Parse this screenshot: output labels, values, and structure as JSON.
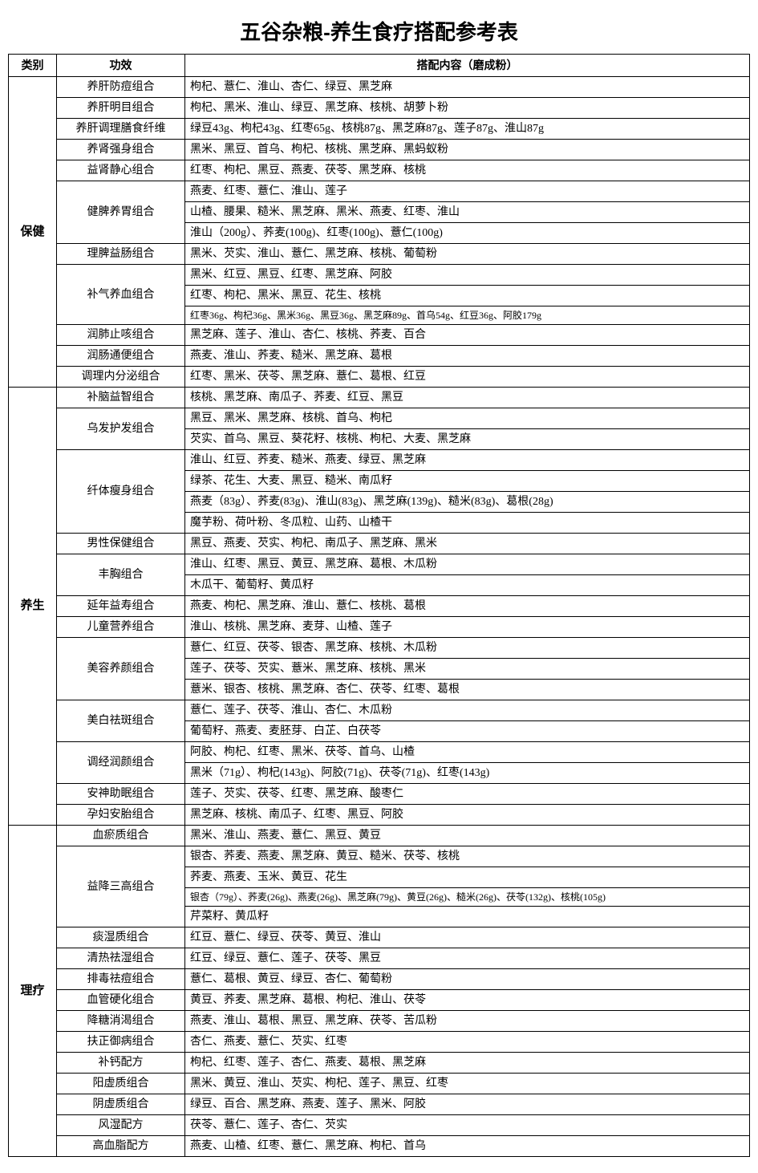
{
  "document": {
    "title": "五谷杂粮-养生食疗搭配参考表",
    "type": "table",
    "background_color": "#ffffff",
    "border_color": "#000000",
    "title_fontsize": 26,
    "header_fontsize": 14,
    "cell_fontsize": 14,
    "small_cell_fontsize": 12,
    "columns": {
      "category": "类别",
      "effect": "功效",
      "content": "搭配内容（磨成粉）"
    },
    "categories": [
      {
        "name": "保健",
        "sections": [
          {
            "effect": "养肝防痘组合",
            "rows": [
              "枸杞、薏仁、淮山、杏仁、绿豆、黑芝麻"
            ]
          },
          {
            "effect": "养肝明目组合",
            "rows": [
              "枸杞、黑米、淮山、绿豆、黑芝麻、核桃、胡萝卜粉"
            ]
          },
          {
            "effect": "养肝调理膳食纤维",
            "rows": [
              "绿豆43g、枸杞43g、红枣65g、核桃87g、黑芝麻87g、莲子87g、淮山87g"
            ]
          },
          {
            "effect": "养肾强身组合",
            "rows": [
              "黑米、黑豆、首乌、枸杞、核桃、黑芝麻、黑蚂蚁粉"
            ]
          },
          {
            "effect": "益肾静心组合",
            "rows": [
              "红枣、枸杞、黑豆、燕麦、茯苓、黑芝麻、核桃"
            ]
          },
          {
            "effect": "健脾养胃组合",
            "rows": [
              "燕麦、红枣、薏仁、淮山、莲子",
              "山楂、腰果、糙米、黑芝麻、黑米、燕麦、红枣、淮山",
              "淮山（200g）、荞麦(100g)、红枣(100g)、薏仁(100g)"
            ]
          },
          {
            "effect": "理脾益肠组合",
            "rows": [
              "黑米、芡实、淮山、薏仁、黑芝麻、核桃、葡萄粉"
            ]
          },
          {
            "effect": "补气养血组合",
            "rows": [
              "黑米、红豆、黑豆、红枣、黑芝麻、阿胶",
              "红枣、枸杞、黑米、黑豆、花生、核桃",
              "红枣36g、枸杞36g、黑米36g、黑豆36g、黑芝麻89g、首乌54g、红豆36g、阿胶179g"
            ],
            "small_rows": [
              2
            ]
          },
          {
            "effect": "润肺止咳组合",
            "rows": [
              "黑芝麻、莲子、淮山、杏仁、核桃、荞麦、百合"
            ]
          },
          {
            "effect": "润肠通便组合",
            "rows": [
              "燕麦、淮山、荞麦、糙米、黑芝麻、葛根"
            ]
          },
          {
            "effect": "调理内分泌组合",
            "rows": [
              "红枣、黑米、茯苓、黑芝麻、薏仁、葛根、红豆"
            ]
          }
        ]
      },
      {
        "name": "养生",
        "sections": [
          {
            "effect": "补脑益智组合",
            "rows": [
              "核桃、黑芝麻、南瓜子、荞麦、红豆、黑豆"
            ]
          },
          {
            "effect": "乌发护发组合",
            "rows": [
              "黑豆、黑米、黑芝麻、核桃、首乌、枸杞",
              "芡实、首乌、黑豆、葵花籽、核桃、枸杞、大麦、黑芝麻"
            ]
          },
          {
            "effect": "纤体瘦身组合",
            "rows": [
              "淮山、红豆、荞麦、糙米、燕麦、绿豆、黑芝麻",
              "绿茶、花生、大麦、黑豆、糙米、南瓜籽",
              "燕麦（83g）、荞麦(83g)、淮山(83g)、黑芝麻(139g)、糙米(83g)、葛根(28g)",
              "魔芋粉、荷叶粉、冬瓜粒、山药、山楂干"
            ]
          },
          {
            "effect": "男性保健组合",
            "rows": [
              "黑豆、燕麦、芡实、枸杞、南瓜子、黑芝麻、黑米"
            ]
          },
          {
            "effect": "丰胸组合",
            "rows": [
              "淮山、红枣、黑豆、黄豆、黑芝麻、葛根、木瓜粉",
              "木瓜干、葡萄籽、黄瓜籽"
            ]
          },
          {
            "effect": "延年益寿组合",
            "rows": [
              "燕麦、枸杞、黑芝麻、淮山、薏仁、核桃、葛根"
            ]
          },
          {
            "effect": "儿童营养组合",
            "rows": [
              "淮山、核桃、黑芝麻、麦芽、山楂、莲子"
            ]
          },
          {
            "effect": "美容养颜组合",
            "rows": [
              "薏仁、红豆、茯苓、银杏、黑芝麻、核桃、木瓜粉",
              "莲子、茯苓、芡实、薏米、黑芝麻、核桃、黑米",
              "薏米、银杏、核桃、黑芝麻、杏仁、茯苓、红枣、葛根"
            ]
          },
          {
            "effect": "美白祛斑组合",
            "rows": [
              "薏仁、莲子、茯苓、淮山、杏仁、木瓜粉",
              "葡萄籽、燕麦、麦胚芽、白芷、白茯苓"
            ]
          },
          {
            "effect": "调经润颜组合",
            "rows": [
              "阿胶、枸杞、红枣、黑米、茯苓、首乌、山楂",
              "黑米（71g）、枸杞(143g)、阿胶(71g)、茯苓(71g)、红枣(143g)"
            ]
          },
          {
            "effect": "安神助眠组合",
            "rows": [
              "莲子、芡实、茯苓、红枣、黑芝麻、酸枣仁"
            ]
          },
          {
            "effect": "孕妇安胎组合",
            "rows": [
              "黑芝麻、核桃、南瓜子、红枣、黑豆、阿胶"
            ]
          }
        ]
      },
      {
        "name": "理疗",
        "sections": [
          {
            "effect": "血瘀质组合",
            "rows": [
              "黑米、淮山、燕麦、薏仁、黑豆、黄豆"
            ]
          },
          {
            "effect": "益降三高组合",
            "rows": [
              "银杏、荞麦、燕麦、黑芝麻、黄豆、糙米、茯苓、核桃",
              "荞麦、燕麦、玉米、黄豆、花生",
              "银杏（79g）、荞麦(26g)、燕麦(26g)、黑芝麻(79g)、黄豆(26g)、糙米(26g)、茯苓(132g)、核桃(105g)",
              "芹菜籽、黄瓜籽"
            ],
            "small_rows": [
              2
            ]
          },
          {
            "effect": "痰湿质组合",
            "rows": [
              "红豆、薏仁、绿豆、茯苓、黄豆、淮山"
            ]
          },
          {
            "effect": "清热祛湿组合",
            "rows": [
              "红豆、绿豆、薏仁、莲子、茯苓、黑豆"
            ]
          },
          {
            "effect": "排毒祛痘组合",
            "rows": [
              "薏仁、葛根、黄豆、绿豆、杏仁、葡萄粉"
            ]
          },
          {
            "effect": "血管硬化组合",
            "rows": [
              "黄豆、荞麦、黑芝麻、葛根、枸杞、淮山、茯苓"
            ]
          },
          {
            "effect": "降糖消渴组合",
            "rows": [
              "燕麦、淮山、葛根、黑豆、黑芝麻、茯苓、苦瓜粉"
            ]
          },
          {
            "effect": "扶正御病组合",
            "rows": [
              "杏仁、燕麦、薏仁、芡实、红枣"
            ]
          },
          {
            "effect": "补钙配方",
            "rows": [
              "枸杞、红枣、莲子、杏仁、燕麦、葛根、黑芝麻"
            ]
          },
          {
            "effect": "阳虚质组合",
            "rows": [
              "黑米、黄豆、淮山、芡实、枸杞、莲子、黑豆、红枣"
            ]
          },
          {
            "effect": "阴虚质组合",
            "rows": [
              "绿豆、百合、黑芝麻、燕麦、莲子、黑米、阿胶"
            ]
          },
          {
            "effect": "风湿配方",
            "rows": [
              "茯苓、薏仁、莲子、杏仁、芡实"
            ]
          },
          {
            "effect": "高血脂配方",
            "rows": [
              "燕麦、山楂、红枣、薏仁、黑芝麻、枸杞、首乌"
            ]
          }
        ]
      }
    ]
  }
}
